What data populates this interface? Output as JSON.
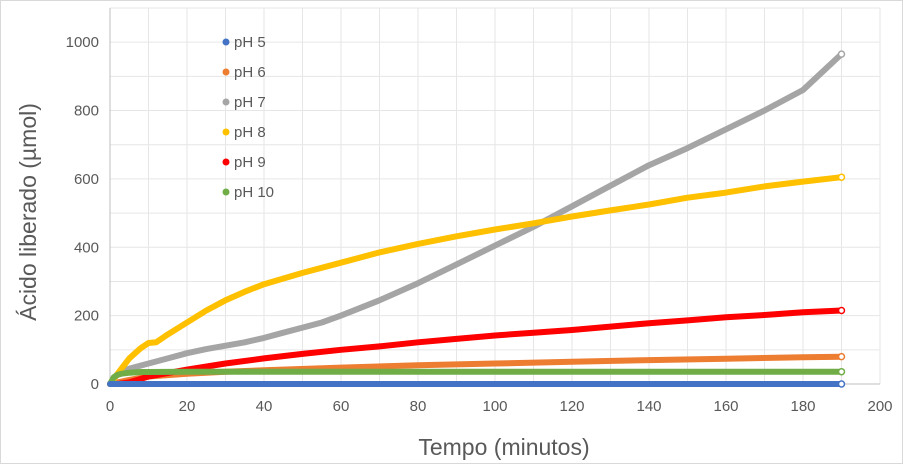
{
  "chart_data": {
    "type": "scatter",
    "title": "",
    "xlabel": "Tempo (minutos)",
    "ylabel": "Ácido liberado (µmol)",
    "xlim": [
      0,
      200
    ],
    "ylim": [
      0,
      1100
    ],
    "xticks": [
      0,
      20,
      40,
      60,
      80,
      100,
      120,
      140,
      160,
      180,
      200
    ],
    "yticks": [
      0,
      200,
      400,
      600,
      800,
      1000
    ],
    "grid": true,
    "legend": "top-left",
    "series": [
      {
        "name": "pH 5",
        "color": "#4472C4",
        "x": [
          0,
          20,
          40,
          60,
          80,
          100,
          120,
          140,
          160,
          180,
          190
        ],
        "y": [
          0,
          0,
          0,
          0,
          0,
          0,
          0,
          0,
          0,
          0,
          0
        ]
      },
      {
        "name": "pH 6",
        "color": "#ED7D31",
        "x": [
          0,
          5,
          10,
          20,
          30,
          40,
          60,
          80,
          100,
          120,
          140,
          160,
          180,
          190
        ],
        "y": [
          0,
          12,
          22,
          30,
          36,
          40,
          48,
          55,
          60,
          65,
          70,
          74,
          78,
          80
        ]
      },
      {
        "name": "pH 7",
        "color": "#A5A5A5",
        "x": [
          0,
          2,
          5,
          10,
          15,
          20,
          25,
          30,
          35,
          40,
          45,
          50,
          55,
          60,
          70,
          80,
          90,
          100,
          110,
          120,
          130,
          140,
          150,
          160,
          170,
          180,
          190
        ],
        "y": [
          0,
          30,
          45,
          60,
          75,
          90,
          102,
          112,
          122,
          135,
          150,
          165,
          180,
          200,
          245,
          295,
          350,
          405,
          460,
          520,
          580,
          640,
          690,
          745,
          800,
          860,
          965
        ]
      },
      {
        "name": "pH 8",
        "color": "#FFC000",
        "x": [
          0,
          3,
          5,
          8,
          10,
          12,
          15,
          20,
          25,
          30,
          35,
          40,
          50,
          60,
          70,
          80,
          90,
          100,
          110,
          120,
          130,
          140,
          150,
          160,
          170,
          180,
          190
        ],
        "y": [
          0,
          45,
          75,
          105,
          120,
          122,
          145,
          180,
          215,
          245,
          270,
          292,
          325,
          355,
          385,
          410,
          432,
          452,
          470,
          490,
          508,
          525,
          545,
          560,
          578,
          592,
          605
        ]
      },
      {
        "name": "pH 9",
        "color": "#FF0000",
        "x": [
          0,
          2,
          5,
          8,
          10,
          15,
          20,
          30,
          40,
          50,
          60,
          70,
          80,
          90,
          100,
          110,
          120,
          130,
          140,
          150,
          160,
          170,
          180,
          190
        ],
        "y": [
          0,
          0,
          5,
          15,
          22,
          32,
          42,
          60,
          75,
          88,
          100,
          110,
          122,
          132,
          142,
          150,
          158,
          168,
          178,
          186,
          195,
          202,
          210,
          215
        ]
      },
      {
        "name": "pH 10",
        "color": "#70AD47",
        "x": [
          0,
          1,
          2,
          3,
          5,
          8,
          10,
          20,
          40,
          60,
          80,
          100,
          120,
          140,
          160,
          180,
          190
        ],
        "y": [
          0,
          20,
          27,
          30,
          33,
          35,
          35,
          36,
          36,
          36,
          36,
          36,
          36,
          36,
          36,
          36,
          36
        ]
      }
    ]
  }
}
